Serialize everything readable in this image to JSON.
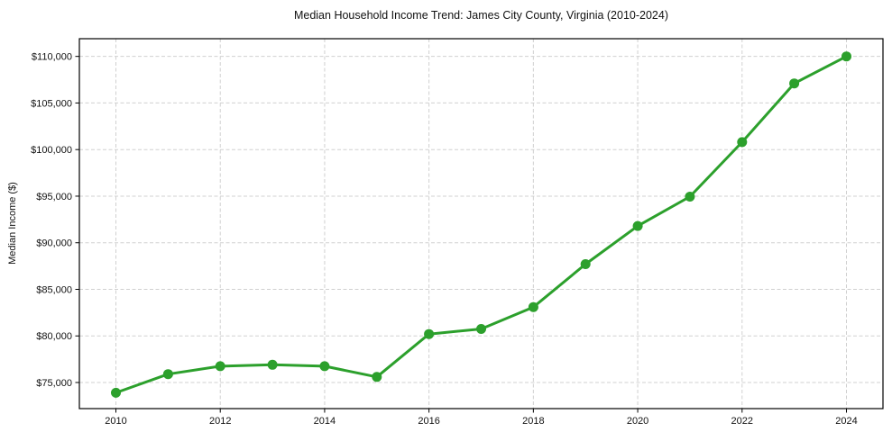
{
  "chart_data": {
    "type": "line",
    "title": "Median Household Income Trend: James City County, Virginia (2010-2024)",
    "xlabel": "",
    "ylabel": "Median Income ($)",
    "x": [
      2010,
      2011,
      2012,
      2013,
      2014,
      2015,
      2016,
      2017,
      2018,
      2019,
      2020,
      2021,
      2022,
      2023,
      2024
    ],
    "values": [
      73900,
      75900,
      76750,
      76900,
      76750,
      75600,
      80200,
      80750,
      83100,
      87700,
      91800,
      94950,
      100800,
      107100,
      110000
    ],
    "x_ticks": [
      2010,
      2012,
      2014,
      2016,
      2018,
      2020,
      2022,
      2024
    ],
    "x_tick_labels": [
      "2010",
      "2012",
      "2014",
      "2016",
      "2018",
      "2020",
      "2022",
      "2024"
    ],
    "y_ticks": [
      75000,
      80000,
      85000,
      90000,
      95000,
      100000,
      105000,
      110000
    ],
    "y_tick_labels": [
      "$75,000",
      "$80,000",
      "$85,000",
      "$90,000",
      "$95,000",
      "$100,000",
      "$105,000",
      "$110,000"
    ],
    "xlim": [
      2009.3,
      2024.7
    ],
    "ylim": [
      72200,
      111900
    ],
    "grid": true,
    "grid_style": "dashed",
    "legend": false,
    "line_color": "#2ca02c",
    "marker": "circle",
    "grid_color": "#d0d0d0",
    "axis_color": "#000000",
    "background_color": "#ffffff"
  }
}
